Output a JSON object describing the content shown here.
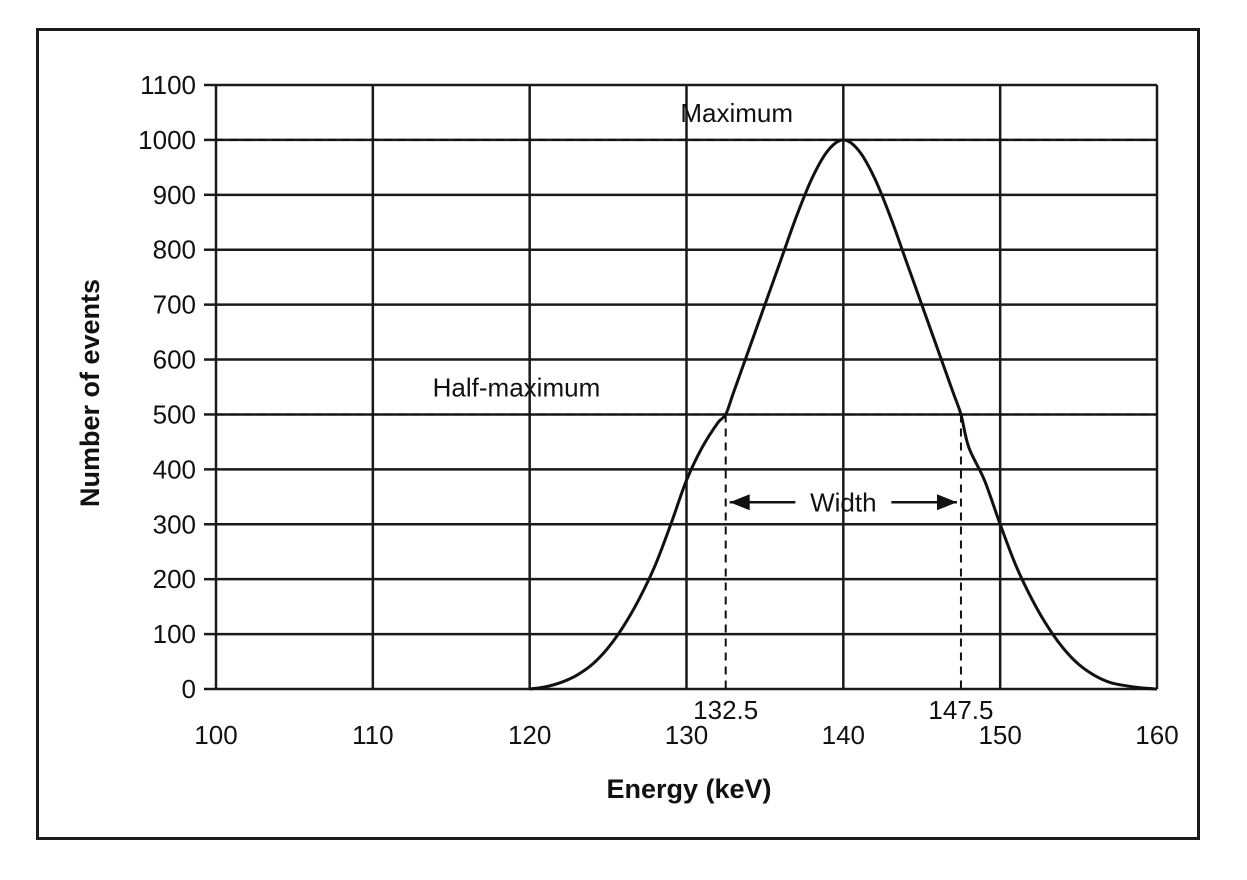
{
  "chart_data": {
    "type": "line",
    "xlabel": "Energy (keV)",
    "ylabel": "Number of events",
    "xlim": [
      100,
      160
    ],
    "ylim": [
      0,
      1100
    ],
    "x_ticks": [
      100,
      110,
      120,
      130,
      140,
      150,
      160
    ],
    "y_ticks": [
      0,
      100,
      200,
      300,
      400,
      500,
      600,
      700,
      800,
      900,
      1000,
      1100
    ],
    "grid": true,
    "series": [
      {
        "x": [
          120,
          121,
          122,
          123,
          124,
          125,
          126,
          127,
          128,
          129,
          130,
          131,
          132,
          132.5,
          133,
          134,
          135,
          136,
          137,
          138,
          139,
          140,
          141,
          142,
          143,
          144,
          145,
          146,
          147,
          147.5,
          148,
          149,
          150,
          151,
          152,
          153,
          154,
          155,
          156,
          157,
          158,
          159,
          160
        ],
        "y": [
          0,
          4,
          12,
          25,
          45,
          75,
          115,
          165,
          225,
          300,
          380,
          440,
          485,
          500,
          540,
          620,
          700,
          780,
          860,
          930,
          980,
          1000,
          980,
          930,
          860,
          780,
          700,
          620,
          540,
          500,
          440,
          380,
          300,
          225,
          165,
          115,
          75,
          45,
          25,
          12,
          6,
          2,
          0
        ]
      }
    ],
    "reference_lines": [
      {
        "orientation": "horizontal",
        "y": 1000,
        "label": "Maximum"
      },
      {
        "orientation": "horizontal",
        "y": 500,
        "label": "Half-maximum"
      },
      {
        "orientation": "vertical",
        "x": 132.5,
        "label": "132.5"
      },
      {
        "orientation": "vertical",
        "x": 147.5,
        "label": "147.5"
      }
    ],
    "annotations": [
      {
        "text": "Width",
        "from_x": 132.5,
        "to_x": 147.5,
        "y": 340
      }
    ]
  }
}
